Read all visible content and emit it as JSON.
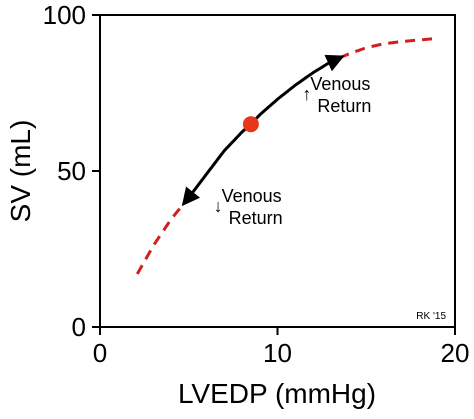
{
  "chart_data": {
    "type": "line",
    "xlabel": "LVEDP (mmHg)",
    "ylabel": "SV (mL)",
    "xlim": [
      0,
      20
    ],
    "ylim": [
      0,
      100
    ],
    "xticks": [
      "0",
      "10",
      "20"
    ],
    "yticks": [
      "0",
      "50",
      "100"
    ],
    "grid": false,
    "curve": {
      "x": [
        2.1,
        3.0,
        4.0,
        5.0,
        6.0,
        7.0,
        8.0,
        8.5,
        9.0,
        10.0,
        11.0,
        12.0,
        13.0,
        14.0,
        15.0,
        16.0,
        17.0,
        18.0,
        19.0
      ],
      "y": [
        17,
        26,
        34.5,
        41.5,
        49,
        56.5,
        62.5,
        65,
        68,
        73,
        77.5,
        81.5,
        85,
        87.5,
        89.5,
        90.8,
        91.5,
        92.0,
        92.5
      ]
    },
    "solid_range": [
      4.8,
      13.5
    ],
    "colors": {
      "curve_dashed": "#d11f1f",
      "curve_solid": "#000000",
      "point": "#e8361c",
      "axis": "#000000"
    },
    "operating_point": {
      "x": 8.5,
      "y": 65
    },
    "annotations": [
      {
        "arrow": "↑",
        "line1": "Venous",
        "line2": "Return",
        "x": 11.4,
        "y": 76
      },
      {
        "arrow": "↓",
        "line1": "Venous",
        "line2": "Return",
        "x": 6.4,
        "y": 40
      }
    ],
    "credit": "RK '15"
  }
}
